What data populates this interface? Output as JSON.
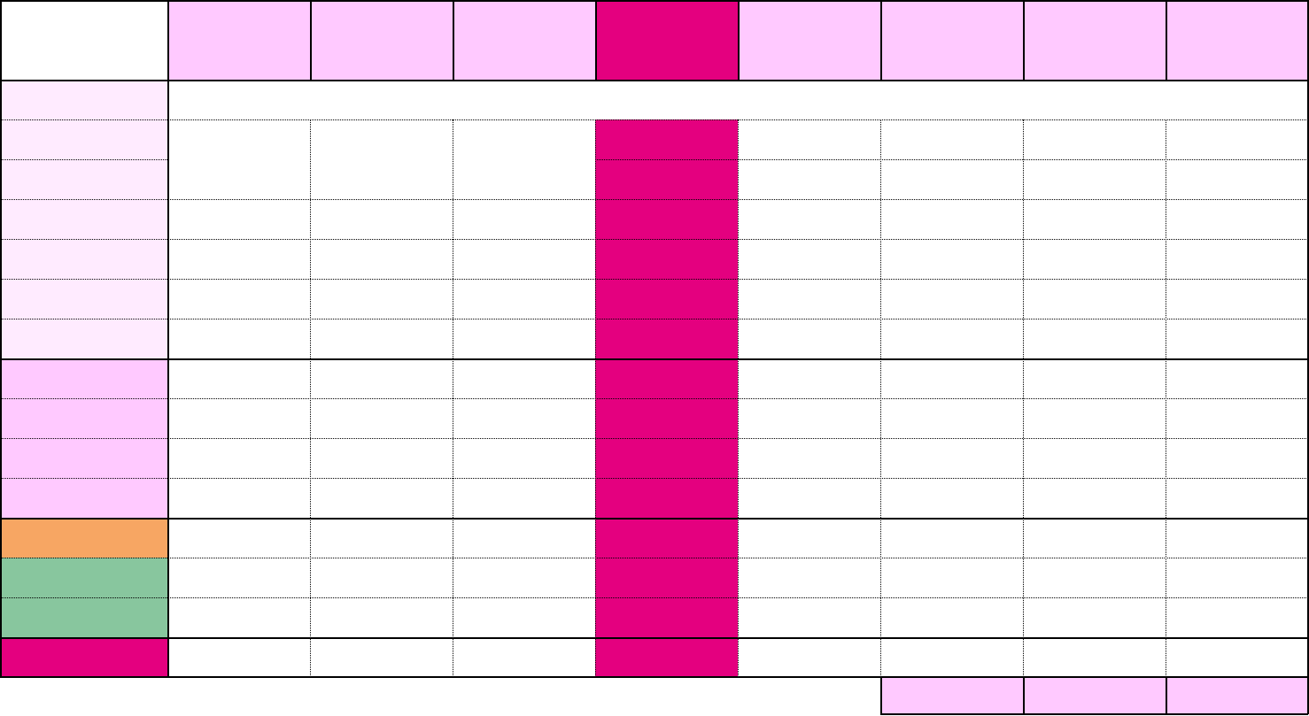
{
  "colors": {
    "header_light_pink": "#FFC9FF",
    "magenta": "#E4007F",
    "row_pale_pink": "#FFEBFF",
    "row_light_pink": "#FFC9FF",
    "orange": "#F7A663",
    "green": "#88C69E",
    "white": "#FFFFFF",
    "border": "#000000"
  },
  "grid": {
    "column_count": 9,
    "row_count": 15,
    "highlighted_column_index": 4,
    "header_cells": [
      "",
      "",
      "",
      "",
      "",
      "",
      "",
      "",
      ""
    ],
    "row_labels": [
      "",
      "",
      "",
      "",
      "",
      "",
      "",
      "",
      "",
      "",
      "",
      "",
      "",
      "",
      ""
    ],
    "row_label_colors": [
      "row_pale_pink",
      "row_pale_pink",
      "row_pale_pink",
      "row_pale_pink",
      "row_pale_pink",
      "row_pale_pink",
      "row_pale_pink",
      "row_light_pink",
      "row_light_pink",
      "row_light_pink",
      "row_light_pink",
      "orange",
      "green",
      "green",
      "magenta"
    ],
    "footer_cells": [
      "",
      "",
      ""
    ]
  }
}
